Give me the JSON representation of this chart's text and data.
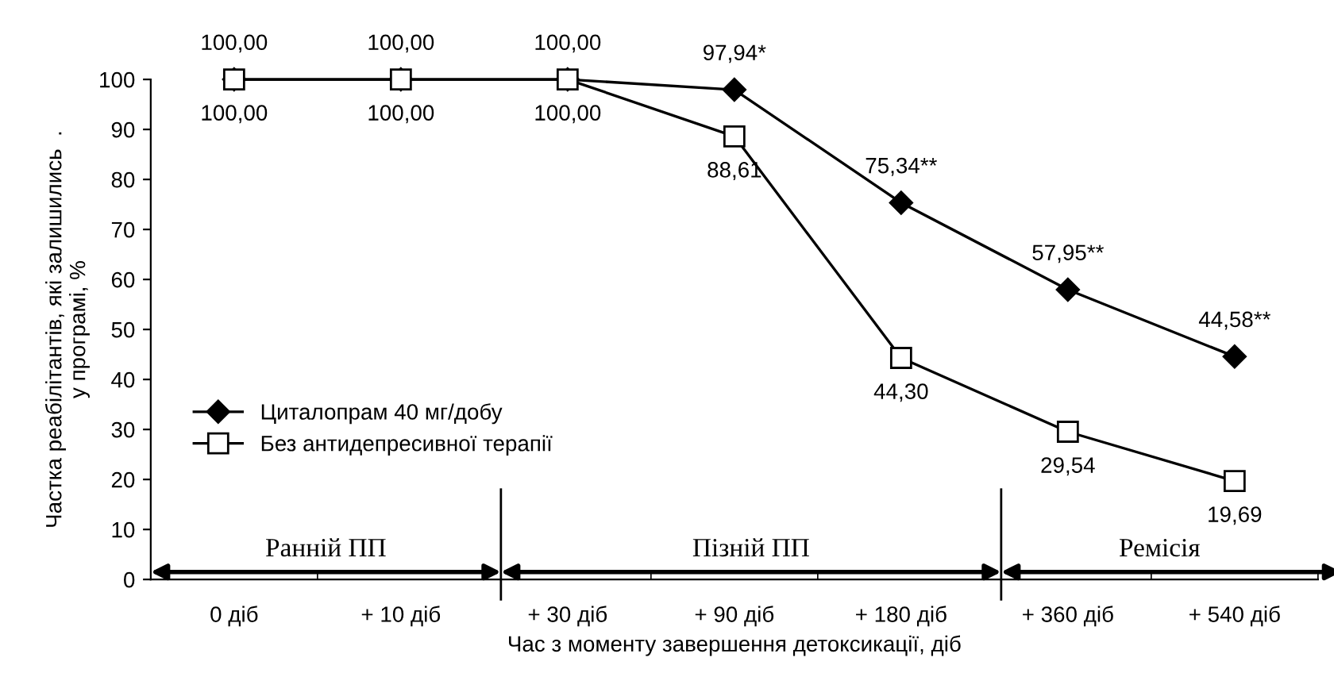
{
  "chart_data": {
    "type": "line",
    "xlabel": "Час з моменту завершення детоксикації, діб",
    "ylabel": "Частка реабілітантів, які залишились  .\nу програмі, %",
    "categories": [
      "0 діб",
      "+ 10 діб",
      "+ 30 діб",
      "+ 90 діб",
      "+ 180 діб",
      "+ 360 діб",
      "+ 540 діб"
    ],
    "series": [
      {
        "name": "Циталопрам 40 мг/добу",
        "color": "#000000",
        "marker": "diamond",
        "values": [
          100,
          100,
          100,
          97.94,
          75.34,
          57.95,
          44.58
        ],
        "value_labels": [
          "100,00",
          "100,00",
          "100,00",
          "97,94*",
          "75,34**",
          "57,95**",
          "44,58**"
        ]
      },
      {
        "name": "Без антидепресивної терапії",
        "color": "#000000",
        "marker": "square",
        "values": [
          100,
          100,
          100,
          88.61,
          44.3,
          29.54,
          19.69
        ],
        "value_labels": [
          "100,00",
          "100,00",
          "100,00",
          "88,61",
          "44,30",
          "29,54",
          "19,69"
        ]
      }
    ],
    "annotations": [
      "Ранній ПП",
      "Пізній ПП",
      "Ремісія"
    ],
    "ylim": [
      0,
      100
    ],
    "yticks": [
      0,
      10,
      20,
      30,
      40,
      50,
      60,
      70,
      80,
      90,
      100
    ],
    "grid": false,
    "legend": "left",
    "line_style": "solid"
  }
}
